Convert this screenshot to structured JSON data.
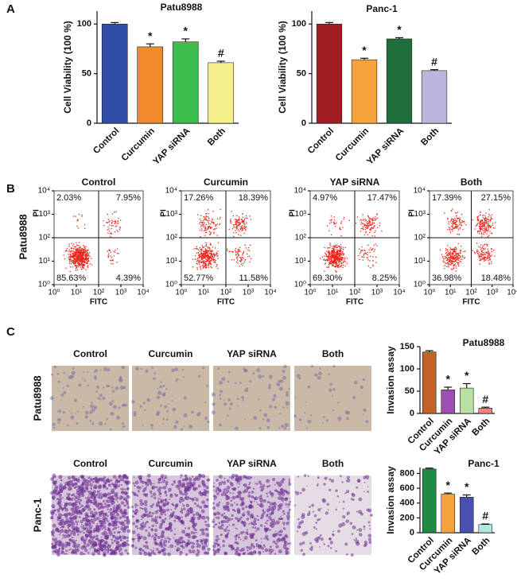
{
  "panel_labels": [
    "A",
    "B",
    "C"
  ],
  "flow_row_label": "Patu8988",
  "micrographs": {
    "rows": [
      {
        "label": "Patu8988",
        "columns": [
          "Control",
          "Curcumin",
          "YAP siRNA",
          "Both"
        ]
      },
      {
        "label": "Panc-1",
        "columns": [
          "Control",
          "Curcumin",
          "YAP siRNA",
          "Both"
        ]
      }
    ]
  },
  "chart_data": [
    {
      "type": "bar",
      "title": "Patu8988",
      "y_label": "Cell Viability (100 %)",
      "categories": [
        "Control",
        "Curcumin",
        "YAP siRNA",
        "Both"
      ],
      "values": [
        100,
        77,
        82,
        61
      ],
      "errors": [
        1.5,
        3,
        3,
        1.5
      ],
      "annotations": [
        null,
        "*",
        "*",
        "#"
      ],
      "colors": [
        "#2f4ea6",
        "#f08a2c",
        "#3dbd4e",
        "#f6f08c"
      ],
      "ylim": [
        0,
        113
      ],
      "yticks": [
        0,
        50,
        100
      ]
    },
    {
      "type": "bar",
      "title": "Panc-1",
      "y_label": "Cell Viability (100 %)",
      "categories": [
        "Control",
        "Curcumin",
        "YAP siRNA",
        "Both"
      ],
      "values": [
        100,
        64,
        85,
        53
      ],
      "errors": [
        1.5,
        1.5,
        1.2,
        1
      ],
      "annotations": [
        null,
        "*",
        "*",
        "#"
      ],
      "colors": [
        "#a11d23",
        "#f6a33d",
        "#1f6d3b",
        "#bab6de"
      ],
      "ylim": [
        0,
        113
      ],
      "yticks": [
        0,
        50,
        100
      ]
    },
    {
      "type": "flow",
      "title": "Control",
      "x_label": "FITC",
      "y_label": "PI",
      "log_scale": true,
      "color": "#e8261c",
      "xlim": [
        1,
        10000
      ],
      "ylim": [
        1,
        10000
      ],
      "gate": [
        100,
        100
      ],
      "xticks": [
        {
          "value": 1,
          "label": "10⁰"
        },
        {
          "value": 10,
          "label": "10¹"
        },
        {
          "value": 100,
          "label": "10²"
        },
        {
          "value": 1000,
          "label": "10³"
        },
        {
          "value": 10000,
          "label": "10⁴"
        }
      ],
      "yticks": [
        {
          "value": 1,
          "label": "10⁰"
        },
        {
          "value": 10,
          "label": "10¹"
        },
        {
          "value": 100,
          "label": "10²"
        },
        {
          "value": 1000,
          "label": "10³"
        },
        {
          "value": 10000,
          "label": "10⁴"
        }
      ],
      "values": [
        2.03,
        7.95,
        85.63,
        4.39
      ],
      "value_labels": [
        "2.03%",
        "7.95%",
        "85.63%",
        "4.39%"
      ]
    },
    {
      "type": "flow",
      "title": "Curcumin",
      "x_label": "FITC",
      "y_label": "PI",
      "log_scale": true,
      "color": "#e8261c",
      "xlim": [
        1,
        10000
      ],
      "ylim": [
        1,
        10000
      ],
      "gate": [
        100,
        100
      ],
      "xticks": [
        {
          "value": 1,
          "label": "10⁰"
        },
        {
          "value": 10,
          "label": "10¹"
        },
        {
          "value": 100,
          "label": "10²"
        },
        {
          "value": 1000,
          "label": "10³"
        },
        {
          "value": 10000,
          "label": "10⁴"
        }
      ],
      "yticks": [
        {
          "value": 1,
          "label": "10⁰"
        },
        {
          "value": 10,
          "label": "10¹"
        },
        {
          "value": 100,
          "label": "10²"
        },
        {
          "value": 1000,
          "label": "10³"
        },
        {
          "value": 10000,
          "label": "10⁴"
        }
      ],
      "values": [
        17.26,
        18.39,
        52.77,
        11.58
      ],
      "value_labels": [
        "17.26%",
        "18.39%",
        "52.77%",
        "11.58%"
      ]
    },
    {
      "type": "flow",
      "title": "YAP siRNA",
      "x_label": "FITC",
      "y_label": "PI",
      "log_scale": true,
      "color": "#e8261c",
      "xlim": [
        1,
        10000
      ],
      "ylim": [
        1,
        10000
      ],
      "gate": [
        100,
        100
      ],
      "xticks": [
        {
          "value": 1,
          "label": "10⁰"
        },
        {
          "value": 10,
          "label": "10¹"
        },
        {
          "value": 100,
          "label": "10²"
        },
        {
          "value": 1000,
          "label": "10³"
        },
        {
          "value": 10000,
          "label": "10⁴"
        }
      ],
      "yticks": [
        {
          "value": 1,
          "label": "10⁰"
        },
        {
          "value": 10,
          "label": "10¹"
        },
        {
          "value": 100,
          "label": "10²"
        },
        {
          "value": 1000,
          "label": "10³"
        },
        {
          "value": 10000,
          "label": "10⁴"
        }
      ],
      "values": [
        4.97,
        17.47,
        69.3,
        8.25
      ],
      "value_labels": [
        "4.97%",
        "17.47%",
        "69.30%",
        "8.25%"
      ]
    },
    {
      "type": "flow",
      "title": "Both",
      "x_label": "FITC",
      "y_label": "PI",
      "log_scale": true,
      "color": "#e8261c",
      "xlim": [
        1,
        10000
      ],
      "ylim": [
        1,
        10000
      ],
      "gate": [
        100,
        100
      ],
      "xticks": [
        {
          "value": 1,
          "label": "10⁰"
        },
        {
          "value": 10,
          "label": "10¹"
        },
        {
          "value": 100,
          "label": "10²"
        },
        {
          "value": 1000,
          "label": "10³"
        },
        {
          "value": 10000,
          "label": "10⁴"
        }
      ],
      "yticks": [
        {
          "value": 1,
          "label": "10⁰"
        },
        {
          "value": 10,
          "label": "10¹"
        },
        {
          "value": 100,
          "label": "10²"
        },
        {
          "value": 1000,
          "label": "10³"
        },
        {
          "value": 10000,
          "label": "10⁴"
        }
      ],
      "values": [
        17.39,
        27.15,
        36.98,
        18.48
      ],
      "value_labels": [
        "17.39%",
        "27.15%",
        "36.98%",
        "18.48%"
      ]
    },
    {
      "type": "bar",
      "title": "Patu8988",
      "y_label": "Invasion assay",
      "categories": [
        "Control",
        "Curcumin",
        "YAP siRNA",
        "Both"
      ],
      "values": [
        138,
        53,
        57,
        12
      ],
      "errors": [
        3,
        6,
        10,
        2
      ],
      "annotations": [
        null,
        "*",
        "*",
        "#"
      ],
      "colors": [
        "#c1622b",
        "#9d4fb1",
        "#b9e0a1",
        "#f08282"
      ],
      "ylim": [
        0,
        150
      ],
      "yticks": [
        0,
        50,
        100,
        150
      ]
    },
    {
      "type": "bar",
      "title": "Panc-1",
      "y_label": "Invasion assay",
      "categories": [
        "Control",
        "Curcumin",
        "YAP siRNA",
        "Both"
      ],
      "values": [
        860,
        520,
        480,
        110
      ],
      "errors": [
        12,
        15,
        30,
        8
      ],
      "annotations": [
        null,
        "*",
        "*",
        "#"
      ],
      "colors": [
        "#1f8a41",
        "#f5a43b",
        "#4a4fb1",
        "#b1e8dc"
      ],
      "ylim": [
        0,
        880
      ],
      "yticks": [
        0,
        200,
        400,
        600,
        800
      ]
    }
  ]
}
